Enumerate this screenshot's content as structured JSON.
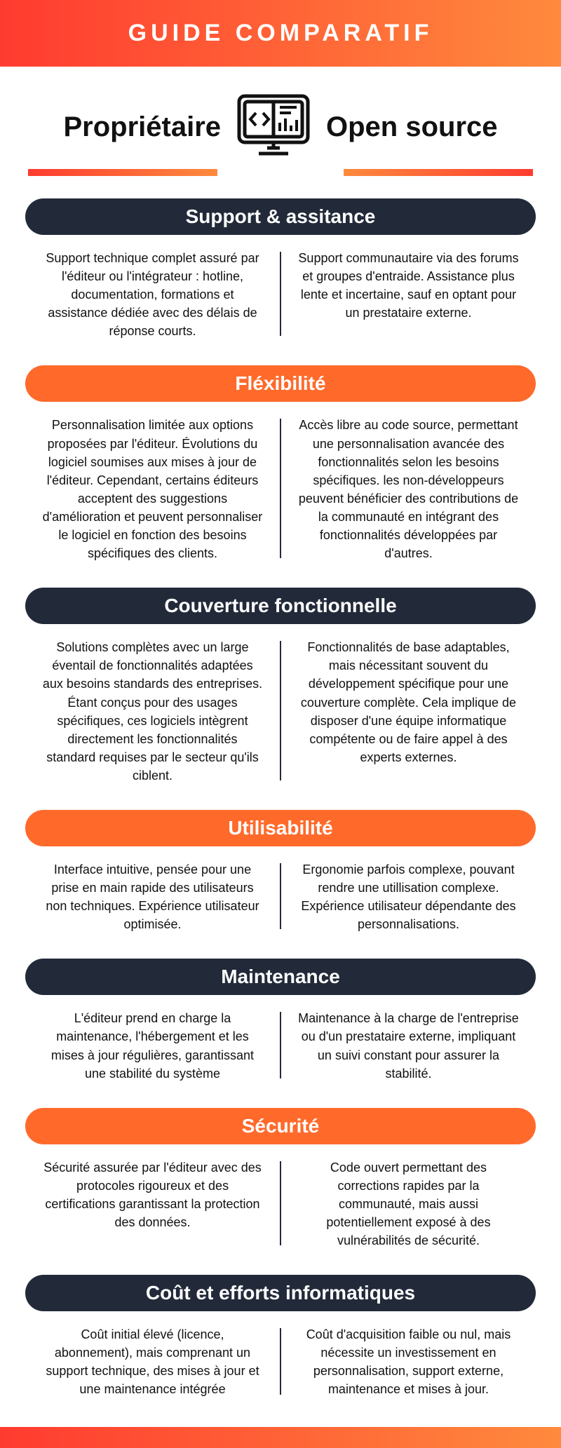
{
  "header": {
    "title": "GUIDE COMPARATIF",
    "left_label": "Propriétaire",
    "right_label": "Open source"
  },
  "colors": {
    "gradient_start": "#ff3b30",
    "gradient_end": "#ff8a3d",
    "dark_pill": "#222a3a",
    "orange_pill": "#ff6a2b",
    "text": "#111111",
    "white": "#ffffff"
  },
  "sections": [
    {
      "title": "Support & assitance",
      "style": "dark",
      "left": "Support technique complet assuré par l'éditeur ou l'intégrateur : hotline, documentation, formations et assistance dédiée avec des délais de réponse courts.",
      "right": "Support communautaire via des forums et groupes d'entraide. Assistance plus lente et incertaine, sauf en optant pour un prestataire externe."
    },
    {
      "title": "Fléxibilité",
      "style": "orange",
      "left": "Personnalisation limitée aux options proposées par l'éditeur. Évolutions du logiciel soumises aux mises à jour de l'éditeur. Cependant, certains éditeurs acceptent des suggestions d'amélioration et peuvent personnaliser le logiciel en fonction des besoins spécifiques des clients.",
      "right": "Accès libre au code source, permettant une personnalisation avancée des fonctionnalités selon les besoins spécifiques. les non-développeurs peuvent bénéficier des contributions de la communauté en intégrant des fonctionnalités développées par d'autres."
    },
    {
      "title": "Couverture fonctionnelle",
      "style": "dark",
      "left": "Solutions complètes avec un large éventail de fonctionnalités adaptées aux besoins standards des entreprises. Étant conçus pour des usages spécifiques, ces logiciels intègrent directement les fonctionnalités standard requises par le secteur qu'ils ciblent.",
      "right": "Fonctionnalités de base adaptables, mais nécessitant souvent du développement spécifique pour une couverture complète. Cela implique de disposer d'une équipe informatique compétente ou de faire appel à des experts externes."
    },
    {
      "title": "Utilisabilité",
      "style": "orange",
      "left": "Interface intuitive, pensée pour une prise en main rapide des utilisateurs non techniques. Expérience utilisateur optimisée.",
      "right": "Ergonomie parfois complexe, pouvant rendre une utillisation complexe. Expérience utilisateur dépendante des personnalisations."
    },
    {
      "title": "Maintenance",
      "style": "dark",
      "left": "L'éditeur prend en charge la maintenance, l'hébergement et les mises à jour régulières, garantissant une stabilité du système",
      "right": "Maintenance à la charge de l'entreprise ou d'un prestataire externe, impliquant un suivi constant pour assurer la stabilité."
    },
    {
      "title": "Sécurité",
      "style": "orange",
      "left": "Sécurité assurée par l'éditeur avec des protocoles rigoureux et des certifications garantissant la protection des données.",
      "right": "Code ouvert permettant des corrections rapides par la communauté, mais aussi potentiellement exposé à des vulnérabilités de sécurité."
    },
    {
      "title": "Coût et efforts informatiques",
      "style": "dark",
      "left": "Coût initial élevé (licence, abonnement), mais comprenant un support technique, des mises à jour et une maintenance intégrée",
      "right": "Coût d'acquisition faible ou nul, mais nécessite un investissement en personnalisation, support externe, maintenance et mises à jour."
    }
  ]
}
